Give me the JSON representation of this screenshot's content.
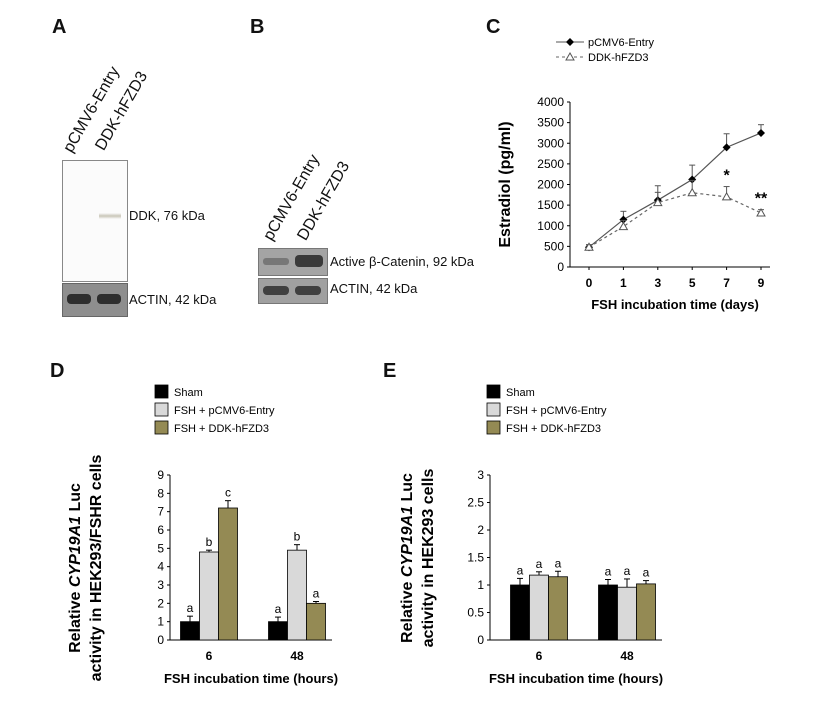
{
  "panels": {
    "A": "A",
    "B": "B",
    "C": "C",
    "D": "D",
    "E": "E"
  },
  "blot_a": {
    "lane_labels": [
      "pCMV6-Entry",
      "DDK-hFZD3"
    ],
    "band_labels": [
      "DDK, 76 kDa",
      "ACTIN, 42 kDa"
    ]
  },
  "blot_b": {
    "lane_labels": [
      "pCMV6-Entry",
      "DDK-hFZD3"
    ],
    "band_labels": [
      "Active β-Catenin, 92 kDa",
      "ACTIN, 42 kDa"
    ]
  },
  "chart_data": [
    {
      "id": "C",
      "type": "line",
      "title": "",
      "xlabel": "FSH incubation time (days)",
      "ylabel": "Estradiol (pg/ml)",
      "categories": [
        "0",
        "1",
        "3",
        "5",
        "7",
        "9"
      ],
      "ylim": [
        0,
        4000
      ],
      "yticks": [
        "0",
        "500",
        "1000",
        "1500",
        "2000",
        "2500",
        "3000",
        "3500",
        "4000"
      ],
      "series": [
        {
          "name": "pCMV6-Entry",
          "values": [
            480,
            1150,
            1620,
            2120,
            2900,
            3250
          ],
          "errors": [
            60,
            200,
            350,
            350,
            330,
            200
          ]
        },
        {
          "name": "DDK-hFZD3",
          "values": [
            480,
            980,
            1560,
            1800,
            1700,
            1310
          ],
          "errors": [
            60,
            150,
            250,
            300,
            250,
            80
          ]
        }
      ],
      "annotations": [
        {
          "category": "7",
          "text": "*"
        },
        {
          "category": "9",
          "text": "**"
        }
      ]
    },
    {
      "id": "D",
      "type": "bar",
      "xlabel": "FSH incubation time (hours)",
      "ylabel_prefix": "Relative ",
      "ylabel_gene": "CYP19A1",
      "ylabel_suffix": " Luc",
      "ylabel_line2": "activity in HEK293/FSHR cells",
      "categories": [
        "6",
        "48"
      ],
      "ylim": [
        0,
        9
      ],
      "yticks": [
        "0",
        "1",
        "2",
        "3",
        "4",
        "5",
        "6",
        "7",
        "8",
        "9"
      ],
      "series": [
        {
          "name": "Sham",
          "color": "#000000",
          "values": [
            1.0,
            1.0
          ],
          "errors": [
            0.3,
            0.25
          ],
          "letters": [
            "a",
            "a"
          ]
        },
        {
          "name": "FSH + pCMV6-Entry",
          "color": "#d9d9d9",
          "values": [
            4.8,
            4.9
          ],
          "errors": [
            0.1,
            0.3
          ],
          "letters": [
            "b",
            "b"
          ]
        },
        {
          "name": "FSH + DDK-hFZD3",
          "color": "#948a54",
          "values": [
            7.2,
            2.0
          ],
          "errors": [
            0.4,
            0.1
          ],
          "letters": [
            "c",
            "a"
          ]
        }
      ]
    },
    {
      "id": "E",
      "type": "bar",
      "xlabel": "FSH incubation time (hours)",
      "ylabel_prefix": "Relative ",
      "ylabel_gene": "CYP19A1",
      "ylabel_suffix": " Luc",
      "ylabel_line2": "activity in HEK293 cells",
      "categories": [
        "6",
        "48"
      ],
      "ylim": [
        0,
        3
      ],
      "yticks": [
        "0",
        "0.5",
        "1",
        "1.5",
        "2",
        "2.5",
        "3"
      ],
      "series": [
        {
          "name": "Sham",
          "color": "#000000",
          "values": [
            1.0,
            1.0
          ],
          "errors": [
            0.12,
            0.1
          ],
          "letters": [
            "a",
            "a"
          ]
        },
        {
          "name": "FSH + pCMV6-Entry",
          "color": "#d9d9d9",
          "values": [
            1.18,
            0.96
          ],
          "errors": [
            0.06,
            0.15
          ],
          "letters": [
            "a",
            "a"
          ]
        },
        {
          "name": "FSH + DDK-hFZD3",
          "color": "#948a54",
          "values": [
            1.15,
            1.02
          ],
          "errors": [
            0.1,
            0.06
          ],
          "letters": [
            "a",
            "a"
          ]
        }
      ]
    }
  ]
}
